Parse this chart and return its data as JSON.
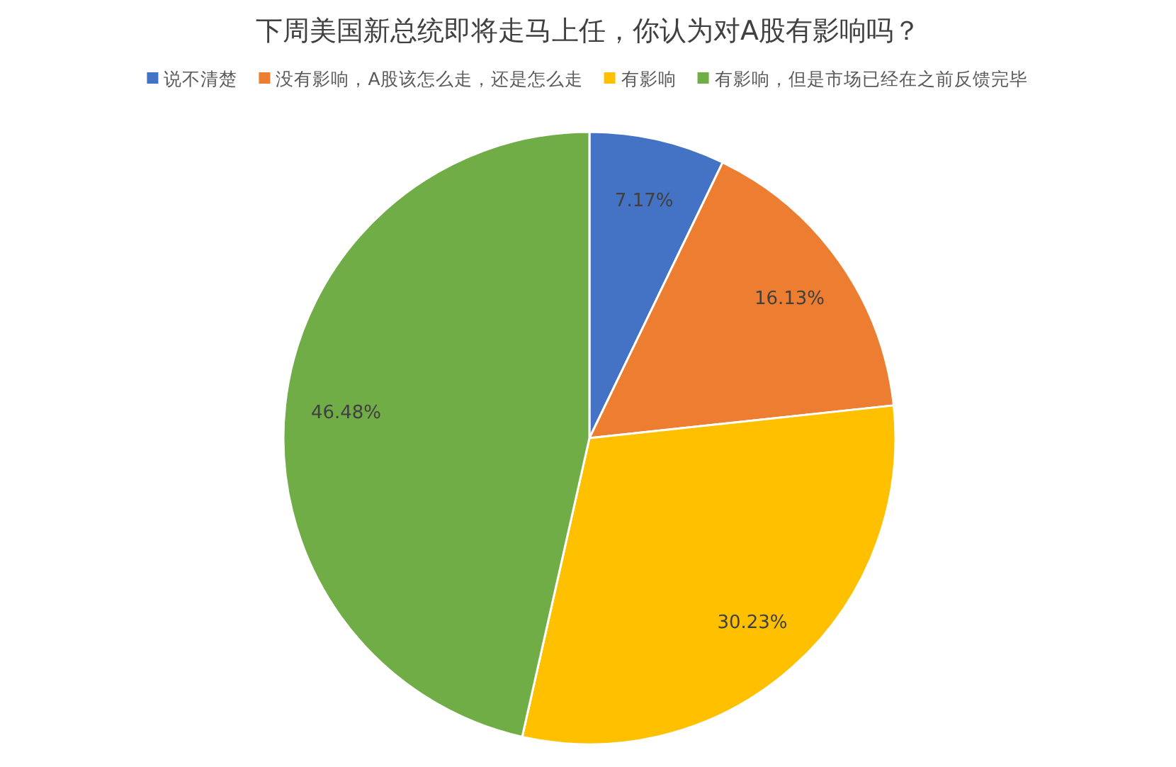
{
  "chart_data": {
    "type": "pie",
    "title": "下周美国新总统即将走马上任，你认为对A股有影响吗？",
    "categories": [
      "说不清楚",
      "没有影响，A股该怎么走，还是怎么走",
      "有影响",
      "有影响，但是市场已经在之前反馈完毕"
    ],
    "values": [
      7.17,
      16.13,
      30.23,
      46.48
    ],
    "colors": [
      "#4472c4",
      "#ed7d31",
      "#ffc000",
      "#70ad47"
    ],
    "value_labels": [
      "7.17%",
      "16.13%",
      "30.23%",
      "46.48%"
    ],
    "legend": "top"
  }
}
